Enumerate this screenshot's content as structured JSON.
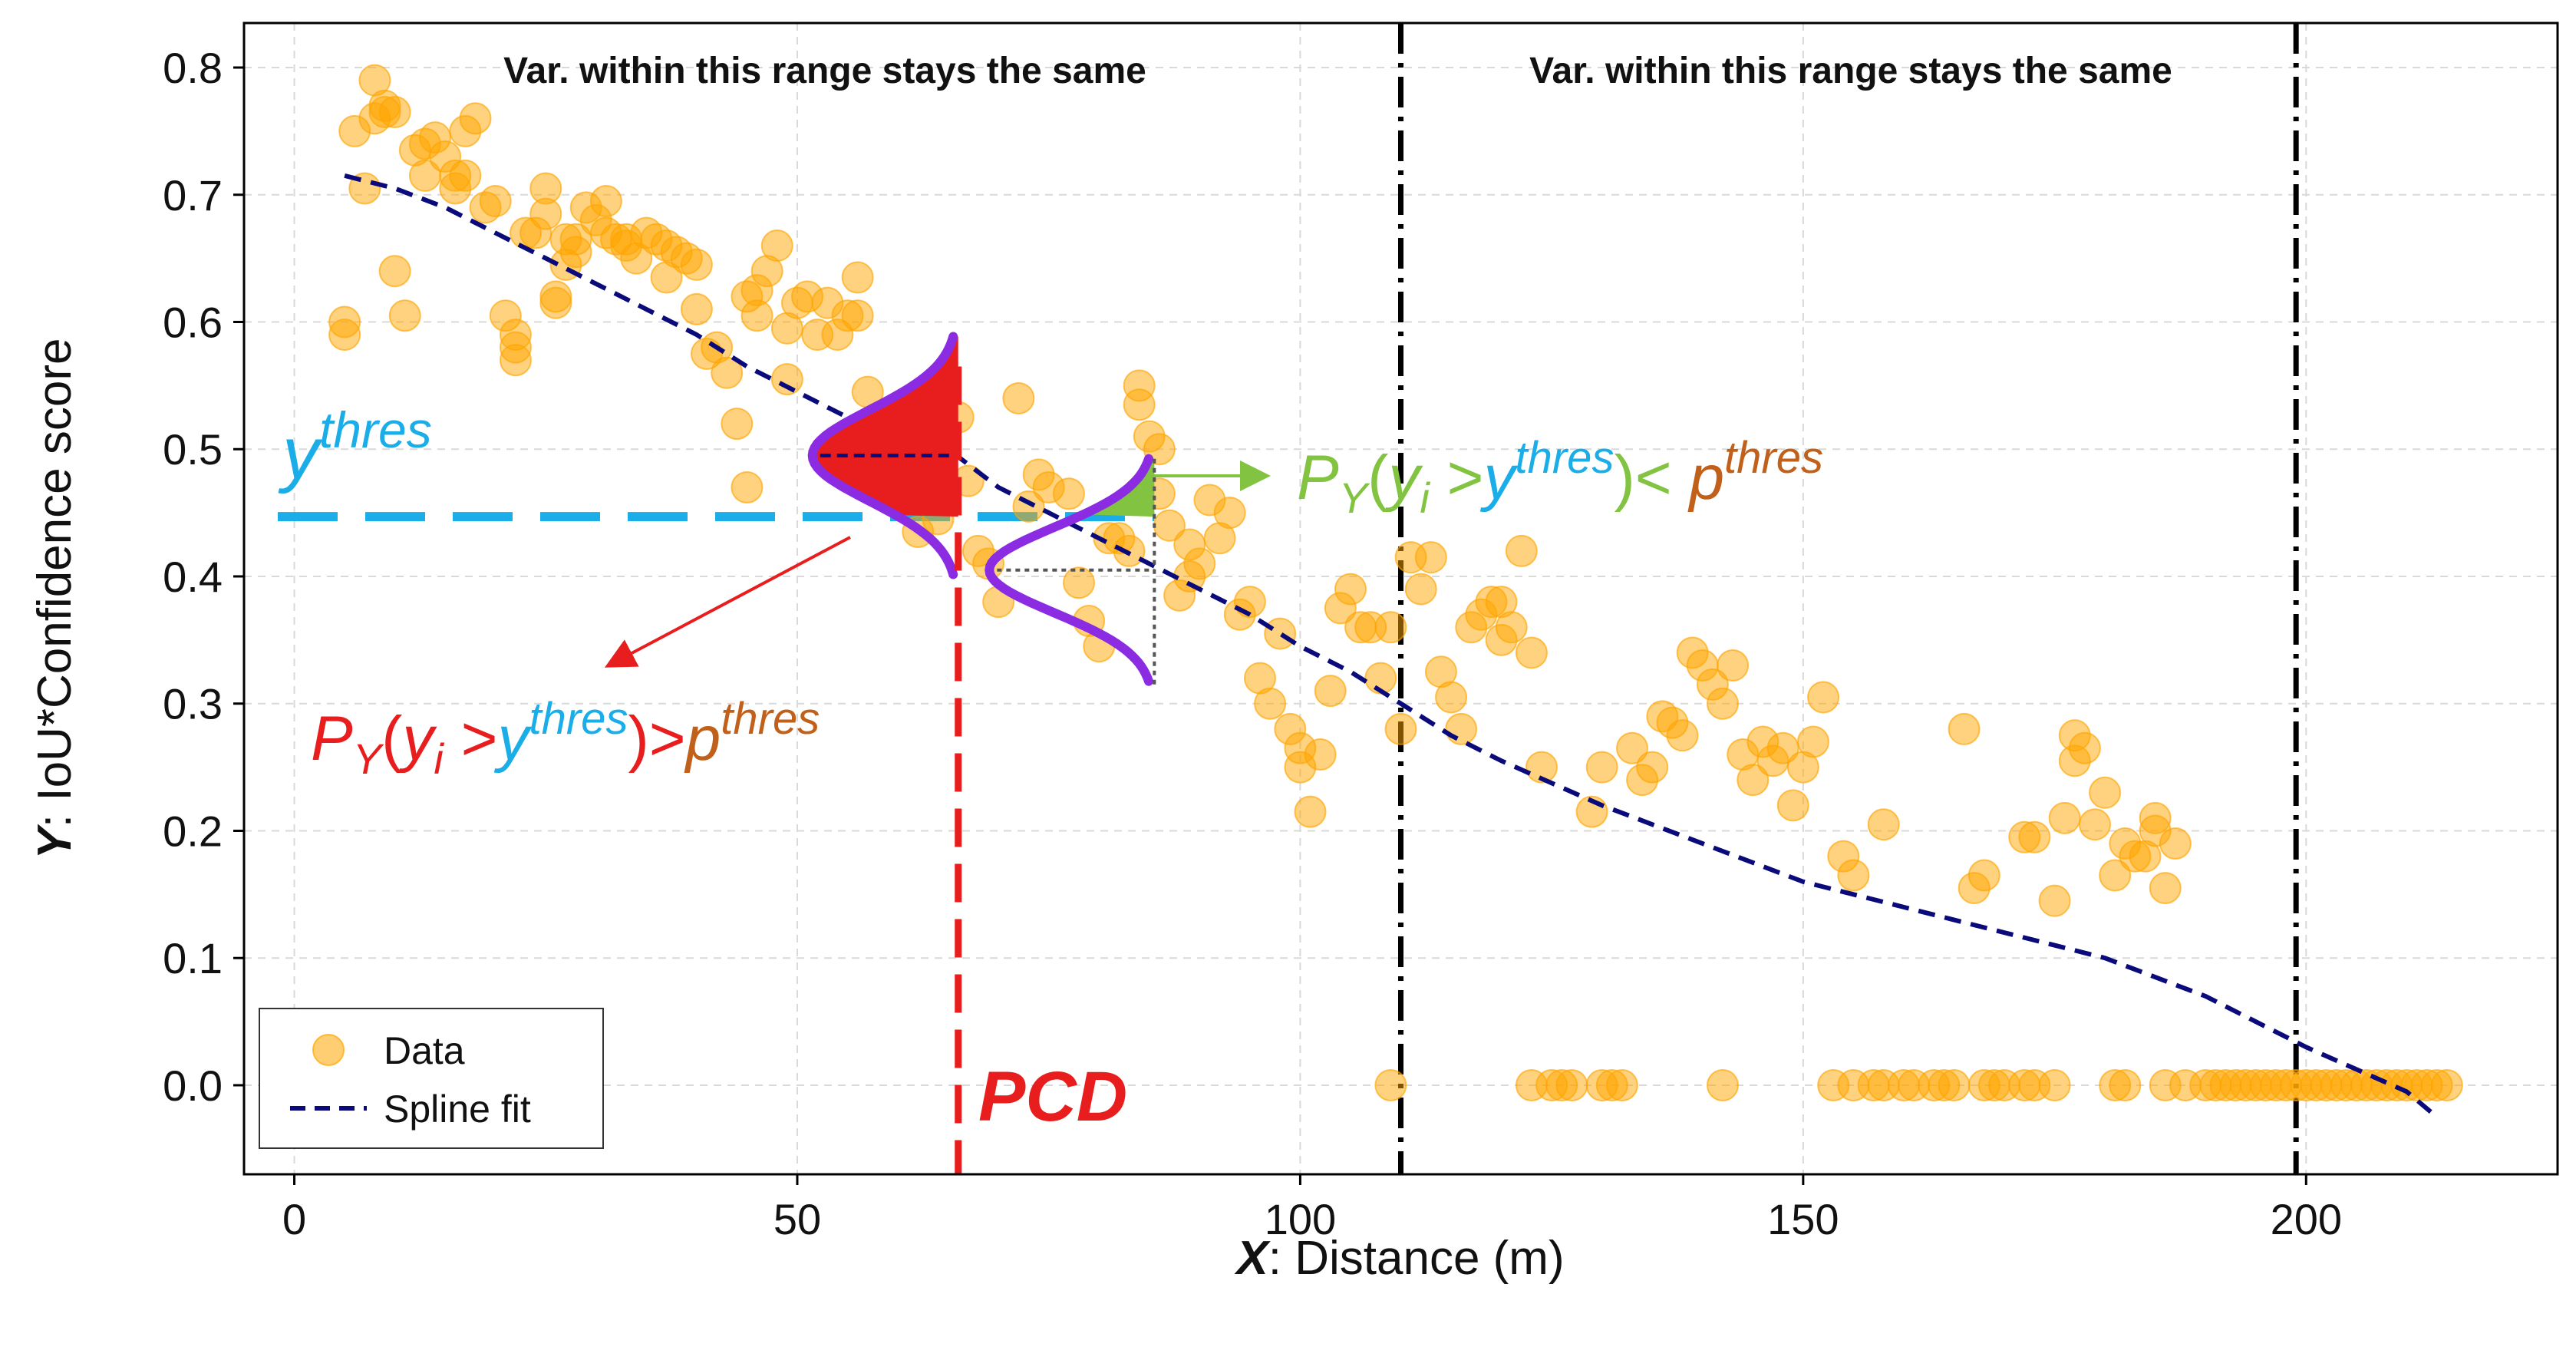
{
  "chart_data": {
    "type": "scatter",
    "xlabel_var": "X",
    "xlabel_text": ": Distance (m)",
    "ylabel_var": "Y",
    "ylabel_text": ":  IoU*Confidence score",
    "xlim": [
      -5,
      225
    ],
    "ylim": [
      -0.07,
      0.835
    ],
    "xticks": [
      0,
      50,
      100,
      150,
      200
    ],
    "yticks": [
      0.0,
      0.1,
      0.2,
      0.3,
      0.4,
      0.5,
      0.6,
      0.7,
      0.8
    ],
    "ytick_labels": [
      "0.0",
      "0.1",
      "0.2",
      "0.3",
      "0.4",
      "0.5",
      "0.6",
      "0.7",
      "0.8"
    ],
    "grid": true,
    "legend": {
      "position": "bottom-left",
      "data_label": "Data",
      "spline_label": "Spline fit"
    },
    "colors": {
      "data": "#FFA500",
      "spline": "#0A0A7A",
      "threshold": "#1AADE8",
      "pcd": "#E81E1E",
      "green": "#82C341",
      "orange": "#C0601A",
      "purple": "#8B2BE2"
    },
    "series": [
      {
        "name": "Data",
        "points": [
          [
            5,
            0.6
          ],
          [
            5,
            0.59
          ],
          [
            6,
            0.75
          ],
          [
            7,
            0.705
          ],
          [
            8,
            0.76
          ],
          [
            8,
            0.79
          ],
          [
            9,
            0.765
          ],
          [
            9,
            0.77
          ],
          [
            10,
            0.765
          ],
          [
            10,
            0.64
          ],
          [
            11,
            0.605
          ],
          [
            12,
            0.735
          ],
          [
            13,
            0.715
          ],
          [
            13,
            0.74
          ],
          [
            14,
            0.745
          ],
          [
            15,
            0.73
          ],
          [
            16,
            0.715
          ],
          [
            16,
            0.705
          ],
          [
            17,
            0.75
          ],
          [
            17,
            0.715
          ],
          [
            18,
            0.76
          ],
          [
            19,
            0.69
          ],
          [
            20,
            0.695
          ],
          [
            21,
            0.605
          ],
          [
            22,
            0.59
          ],
          [
            22,
            0.57
          ],
          [
            22,
            0.58
          ],
          [
            23,
            0.67
          ],
          [
            24,
            0.67
          ],
          [
            25,
            0.705
          ],
          [
            25,
            0.685
          ],
          [
            26,
            0.615
          ],
          [
            26,
            0.62
          ],
          [
            27,
            0.645
          ],
          [
            27,
            0.665
          ],
          [
            28,
            0.655
          ],
          [
            28,
            0.665
          ],
          [
            29,
            0.69
          ],
          [
            30,
            0.68
          ],
          [
            31,
            0.695
          ],
          [
            31,
            0.67
          ],
          [
            32,
            0.665
          ],
          [
            33,
            0.66
          ],
          [
            33,
            0.665
          ],
          [
            34,
            0.65
          ],
          [
            35,
            0.67
          ],
          [
            36,
            0.665
          ],
          [
            37,
            0.635
          ],
          [
            37,
            0.66
          ],
          [
            38,
            0.655
          ],
          [
            39,
            0.65
          ],
          [
            40,
            0.645
          ],
          [
            40,
            0.61
          ],
          [
            41,
            0.575
          ],
          [
            42,
            0.58
          ],
          [
            43,
            0.56
          ],
          [
            44,
            0.52
          ],
          [
            45,
            0.47
          ],
          [
            45,
            0.62
          ],
          [
            46,
            0.625
          ],
          [
            46,
            0.605
          ],
          [
            47,
            0.64
          ],
          [
            48,
            0.66
          ],
          [
            49,
            0.595
          ],
          [
            49,
            0.555
          ],
          [
            50,
            0.615
          ],
          [
            51,
            0.62
          ],
          [
            52,
            0.59
          ],
          [
            53,
            0.615
          ],
          [
            54,
            0.59
          ],
          [
            55,
            0.605
          ],
          [
            56,
            0.635
          ],
          [
            56,
            0.605
          ],
          [
            57,
            0.545
          ],
          [
            59,
            0.525
          ],
          [
            59,
            0.47
          ],
          [
            60,
            0.465
          ],
          [
            61,
            0.48
          ],
          [
            62,
            0.435
          ],
          [
            64,
            0.445
          ],
          [
            66,
            0.525
          ],
          [
            67,
            0.475
          ],
          [
            68,
            0.42
          ],
          [
            69,
            0.41
          ],
          [
            70,
            0.38
          ],
          [
            72,
            0.54
          ],
          [
            73,
            0.455
          ],
          [
            74,
            0.48
          ],
          [
            75,
            0.47
          ],
          [
            77,
            0.465
          ],
          [
            78,
            0.395
          ],
          [
            79,
            0.365
          ],
          [
            80,
            0.345
          ],
          [
            81,
            0.43
          ],
          [
            82,
            0.43
          ],
          [
            83,
            0.42
          ],
          [
            84,
            0.535
          ],
          [
            84,
            0.55
          ],
          [
            85,
            0.51
          ],
          [
            86,
            0.5
          ],
          [
            86,
            0.465
          ],
          [
            87,
            0.44
          ],
          [
            88,
            0.385
          ],
          [
            89,
            0.425
          ],
          [
            89,
            0.4
          ],
          [
            90,
            0.41
          ],
          [
            91,
            0.46
          ],
          [
            92,
            0.43
          ],
          [
            93,
            0.45
          ],
          [
            94,
            0.37
          ],
          [
            95,
            0.38
          ],
          [
            96,
            0.32
          ],
          [
            97,
            0.3
          ],
          [
            98,
            0.355
          ],
          [
            99,
            0.28
          ],
          [
            100,
            0.265
          ],
          [
            100,
            0.25
          ],
          [
            101,
            0.215
          ],
          [
            102,
            0.26
          ],
          [
            103,
            0.31
          ],
          [
            104,
            0.375
          ],
          [
            105,
            0.39
          ],
          [
            106,
            0.36
          ],
          [
            107,
            0.36
          ],
          [
            108,
            0.32
          ],
          [
            109,
            0.36
          ],
          [
            110,
            0.28
          ],
          [
            111,
            0.415
          ],
          [
            112,
            0.39
          ],
          [
            113,
            0.415
          ],
          [
            114,
            0.325
          ],
          [
            115,
            0.305
          ],
          [
            116,
            0.28
          ],
          [
            117,
            0.36
          ],
          [
            118,
            0.37
          ],
          [
            119,
            0.38
          ],
          [
            120,
            0.38
          ],
          [
            120,
            0.35
          ],
          [
            121,
            0.36
          ],
          [
            122,
            0.42
          ],
          [
            123,
            0.34
          ],
          [
            124,
            0.25
          ],
          [
            129,
            0.215
          ],
          [
            130,
            0.25
          ],
          [
            133,
            0.265
          ],
          [
            134,
            0.24
          ],
          [
            135,
            0.25
          ],
          [
            136,
            0.29
          ],
          [
            137,
            0.285
          ],
          [
            138,
            0.275
          ],
          [
            139,
            0.34
          ],
          [
            140,
            0.33
          ],
          [
            141,
            0.315
          ],
          [
            142,
            0.3
          ],
          [
            143,
            0.33
          ],
          [
            144,
            0.26
          ],
          [
            145,
            0.24
          ],
          [
            146,
            0.27
          ],
          [
            147,
            0.255
          ],
          [
            148,
            0.265
          ],
          [
            149,
            0.22
          ],
          [
            150,
            0.25
          ],
          [
            151,
            0.27
          ],
          [
            152,
            0.305
          ],
          [
            154,
            0.18
          ],
          [
            155,
            0.165
          ],
          [
            158,
            0.205
          ],
          [
            166,
            0.28
          ],
          [
            167,
            0.155
          ],
          [
            168,
            0.165
          ],
          [
            172,
            0.195
          ],
          [
            173,
            0.195
          ],
          [
            175,
            0.145
          ],
          [
            176,
            0.21
          ],
          [
            177,
            0.255
          ],
          [
            177,
            0.275
          ],
          [
            178,
            0.265
          ],
          [
            179,
            0.205
          ],
          [
            180,
            0.23
          ],
          [
            181,
            0.165
          ],
          [
            182,
            0.19
          ],
          [
            183,
            0.18
          ],
          [
            184,
            0.18
          ],
          [
            185,
            0.21
          ],
          [
            185,
            0.2
          ],
          [
            186,
            0.155
          ],
          [
            187,
            0.19
          ],
          [
            109,
            0.0
          ],
          [
            123,
            0.0
          ],
          [
            125,
            0.0
          ],
          [
            126,
            0.0
          ],
          [
            127,
            0.0
          ],
          [
            130,
            0.0
          ],
          [
            131,
            0.0
          ],
          [
            132,
            0.0
          ],
          [
            142,
            0.0
          ],
          [
            153,
            0.0
          ],
          [
            155,
            0.0
          ],
          [
            157,
            0.0
          ],
          [
            158,
            0.0
          ],
          [
            160,
            0.0
          ],
          [
            161,
            0.0
          ],
          [
            163,
            0.0
          ],
          [
            164,
            0.0
          ],
          [
            165,
            0.0
          ],
          [
            168,
            0.0
          ],
          [
            169,
            0.0
          ],
          [
            170,
            0.0
          ],
          [
            172,
            0.0
          ],
          [
            173,
            0.0
          ],
          [
            175,
            0.0
          ],
          [
            181,
            0.0
          ],
          [
            182,
            0.0
          ],
          [
            186,
            0.0
          ],
          [
            188,
            0.0
          ],
          [
            190,
            0.0
          ],
          [
            191,
            0.0
          ],
          [
            192,
            0.0
          ],
          [
            193,
            0.0
          ],
          [
            194,
            0.0
          ],
          [
            195,
            0.0
          ],
          [
            196,
            0.0
          ],
          [
            197,
            0.0
          ],
          [
            198,
            0.0
          ],
          [
            199,
            0.0
          ],
          [
            200,
            0.0
          ],
          [
            201,
            0.0
          ],
          [
            202,
            0.0
          ],
          [
            203,
            0.0
          ],
          [
            204,
            0.0
          ],
          [
            205,
            0.0
          ],
          [
            206,
            0.0
          ],
          [
            207,
            0.0
          ],
          [
            208,
            0.0
          ],
          [
            209,
            0.0
          ],
          [
            210,
            0.0
          ],
          [
            211,
            0.0
          ],
          [
            212,
            0.0
          ],
          [
            213,
            0.0
          ],
          [
            214,
            0.0
          ]
        ]
      },
      {
        "name": "Spline fit",
        "points": [
          [
            5,
            0.715
          ],
          [
            10,
            0.705
          ],
          [
            15,
            0.69
          ],
          [
            20,
            0.67
          ],
          [
            25,
            0.65
          ],
          [
            30,
            0.63
          ],
          [
            35,
            0.61
          ],
          [
            40,
            0.59
          ],
          [
            45,
            0.565
          ],
          [
            50,
            0.545
          ],
          [
            55,
            0.525
          ],
          [
            60,
            0.51
          ],
          [
            65,
            0.5
          ],
          [
            70,
            0.47
          ],
          [
            75,
            0.45
          ],
          [
            80,
            0.43
          ],
          [
            85,
            0.41
          ],
          [
            90,
            0.39
          ],
          [
            95,
            0.37
          ],
          [
            100,
            0.345
          ],
          [
            105,
            0.325
          ],
          [
            110,
            0.3
          ],
          [
            115,
            0.275
          ],
          [
            120,
            0.255
          ],
          [
            130,
            0.22
          ],
          [
            140,
            0.19
          ],
          [
            150,
            0.16
          ],
          [
            160,
            0.14
          ],
          [
            170,
            0.12
          ],
          [
            180,
            0.1
          ],
          [
            190,
            0.07
          ],
          [
            200,
            0.03
          ],
          [
            210,
            -0.005
          ],
          [
            213,
            -0.025
          ]
        ]
      }
    ],
    "annotations": {
      "threshold_y": 0.447,
      "y_thres_base": "y",
      "y_thres_sup": "thres",
      "pcd_x": 66,
      "pcd_label": "PCD",
      "vlines_x": [
        110,
        199
      ],
      "range_label_1": "Var. within this range stays the same",
      "range_label_2": "Var. within this range stays the same",
      "green_formula": {
        "P": "P",
        "Y": "Y",
        "open": "(",
        "y": "y",
        "i": "i",
        "gt": " >",
        "y2": "y",
        "thres": "thres",
        "close_lt": ")< ",
        "p": "p",
        "pthres": "thres"
      },
      "red_formula": {
        "P": "P",
        "Y": "Y",
        "open": "(",
        "y": "y",
        "i": "i",
        "gt": " >",
        "y2": "y",
        "thres": "thres",
        "close_gt": ")>",
        "p": "p",
        "pthres": "thres"
      }
    }
  }
}
